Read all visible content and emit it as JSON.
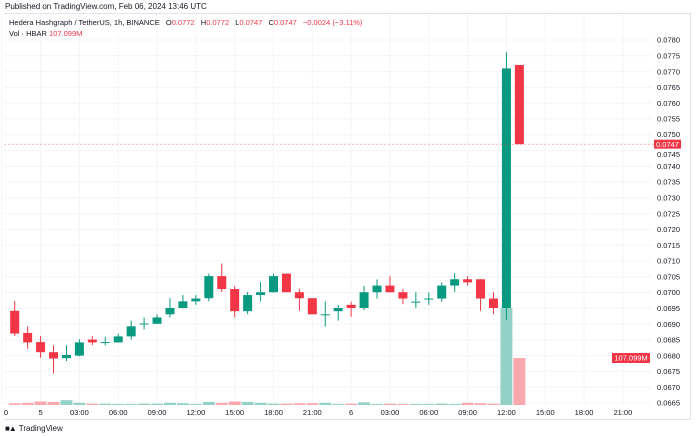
{
  "published": "Published on TradingView.com, Feb 06, 2024 13:46 UTC",
  "legend": {
    "symbol": "Hedera Hashgraph / TetherUS, 1h, BINANCE",
    "o_label": "O",
    "o": "0.0772",
    "h_label": "H",
    "h": "0.0772",
    "l_label": "L",
    "l": "0.0747",
    "c_label": "C",
    "c": "0.0747",
    "change": "−0.0024 (−3.11%)",
    "vol_label": "Vol · HBAR",
    "vol": "107.099M"
  },
  "footer": {
    "brand": "TradingView",
    "logo_text": "TV"
  },
  "colors": {
    "up": "#089981",
    "down": "#f23645",
    "up_vol": "#92d2c6",
    "down_vol": "#f9a9ae",
    "grid": "#f3f4f6",
    "axis_text": "#131722"
  },
  "chart_data": {
    "type": "candlestick",
    "interval": "1h",
    "ylim": [
      0.0665,
      0.078
    ],
    "y_ticks": [
      "0.0780",
      "0.0775",
      "0.0770",
      "0.0765",
      "0.0760",
      "0.0755",
      "0.0750",
      "0.0745",
      "0.0740",
      "0.0735",
      "0.0730",
      "0.0725",
      "0.0720",
      "0.0715",
      "0.0710",
      "0.0705",
      "0.0700",
      "0.0695",
      "0.0690",
      "0.0685",
      "0.0680",
      "0.0675",
      "0.0670",
      "0.0665"
    ],
    "x_ticks": [
      {
        "label": "0",
        "index": -1
      },
      {
        "label": "5",
        "index": 2
      },
      {
        "label": "03:00",
        "index": 5
      },
      {
        "label": "06:00",
        "index": 8
      },
      {
        "label": "09:00",
        "index": 11
      },
      {
        "label": "12:00",
        "index": 14
      },
      {
        "label": "15:00",
        "index": 17
      },
      {
        "label": "18:00",
        "index": 20
      },
      {
        "label": "21:00",
        "index": 23
      },
      {
        "label": "6",
        "index": 26
      },
      {
        "label": "03:00",
        "index": 29
      },
      {
        "label": "06:00",
        "index": 32
      },
      {
        "label": "09:00",
        "index": 35
      },
      {
        "label": "12:00",
        "index": 38
      },
      {
        "label": "15:00",
        "index": 41
      },
      {
        "label": "18:00",
        "index": 44
      },
      {
        "label": "21:00",
        "index": 47
      }
    ],
    "last_price": "0.0747",
    "last_volume": "107.099M",
    "candles": [
      {
        "o": 0.06942,
        "h": 0.06973,
        "l": 0.06862,
        "c": 0.0687,
        "v": 4
      },
      {
        "o": 0.06872,
        "h": 0.06893,
        "l": 0.06822,
        "c": 0.06842,
        "v": 5
      },
      {
        "o": 0.06843,
        "h": 0.06862,
        "l": 0.06793,
        "c": 0.06811,
        "v": 8
      },
      {
        "o": 0.06811,
        "h": 0.06833,
        "l": 0.06744,
        "c": 0.06791,
        "v": 7
      },
      {
        "o": 0.06792,
        "h": 0.06833,
        "l": 0.06783,
        "c": 0.06802,
        "v": 11
      },
      {
        "o": 0.068,
        "h": 0.06852,
        "l": 0.06798,
        "c": 0.06842,
        "v": 5
      },
      {
        "o": 0.06851,
        "h": 0.06862,
        "l": 0.06833,
        "c": 0.06842,
        "v": 3
      },
      {
        "o": 0.06843,
        "h": 0.0686,
        "l": 0.06833,
        "c": 0.06843,
        "v": 3
      },
      {
        "o": 0.06842,
        "h": 0.0687,
        "l": 0.06842,
        "c": 0.06861,
        "v": 2
      },
      {
        "o": 0.06861,
        "h": 0.06911,
        "l": 0.06851,
        "c": 0.06893,
        "v": 2
      },
      {
        "o": 0.06902,
        "h": 0.06921,
        "l": 0.06883,
        "c": 0.06902,
        "v": 3
      },
      {
        "o": 0.06901,
        "h": 0.06931,
        "l": 0.06901,
        "c": 0.06921,
        "v": 3
      },
      {
        "o": 0.06931,
        "h": 0.06982,
        "l": 0.06921,
        "c": 0.06951,
        "v": 5
      },
      {
        "o": 0.06951,
        "h": 0.06992,
        "l": 0.0695,
        "c": 0.06972,
        "v": 4
      },
      {
        "o": 0.06972,
        "h": 0.06992,
        "l": 0.06961,
        "c": 0.06981,
        "v": 2
      },
      {
        "o": 0.06982,
        "h": 0.0706,
        "l": 0.06972,
        "c": 0.07052,
        "v": 7
      },
      {
        "o": 0.07052,
        "h": 0.07092,
        "l": 0.07002,
        "c": 0.07011,
        "v": 5
      },
      {
        "o": 0.07011,
        "h": 0.0702,
        "l": 0.06921,
        "c": 0.06941,
        "v": 8
      },
      {
        "o": 0.06941,
        "h": 0.07002,
        "l": 0.06931,
        "c": 0.06992,
        "v": 7
      },
      {
        "o": 0.06992,
        "h": 0.07033,
        "l": 0.06972,
        "c": 0.07001,
        "v": 5
      },
      {
        "o": 0.07001,
        "h": 0.0706,
        "l": 0.07,
        "c": 0.07052,
        "v": 3
      },
      {
        "o": 0.0706,
        "h": 0.0706,
        "l": 0.07001,
        "c": 0.07001,
        "v": 3
      },
      {
        "o": 0.07001,
        "h": 0.07012,
        "l": 0.06942,
        "c": 0.06982,
        "v": 4
      },
      {
        "o": 0.06982,
        "h": 0.06982,
        "l": 0.06931,
        "c": 0.06931,
        "v": 4
      },
      {
        "o": 0.06931,
        "h": 0.06972,
        "l": 0.06892,
        "c": 0.06931,
        "v": 5
      },
      {
        "o": 0.06941,
        "h": 0.06961,
        "l": 0.06911,
        "c": 0.06951,
        "v": 2
      },
      {
        "o": 0.06961,
        "h": 0.06971,
        "l": 0.06923,
        "c": 0.06951,
        "v": 3
      },
      {
        "o": 0.06951,
        "h": 0.07021,
        "l": 0.06944,
        "c": 0.07001,
        "v": 6
      },
      {
        "o": 0.07001,
        "h": 0.07042,
        "l": 0.06981,
        "c": 0.07022,
        "v": 2
      },
      {
        "o": 0.07022,
        "h": 0.07052,
        "l": 0.07,
        "c": 0.07001,
        "v": 3
      },
      {
        "o": 0.07001,
        "h": 0.07011,
        "l": 0.06963,
        "c": 0.06981,
        "v": 2
      },
      {
        "o": 0.06971,
        "h": 0.07001,
        "l": 0.06951,
        "c": 0.06971,
        "v": 2
      },
      {
        "o": 0.06981,
        "h": 0.07,
        "l": 0.06961,
        "c": 0.06981,
        "v": 2
      },
      {
        "o": 0.06981,
        "h": 0.07032,
        "l": 0.06971,
        "c": 0.07022,
        "v": 3
      },
      {
        "o": 0.07022,
        "h": 0.07062,
        "l": 0.07002,
        "c": 0.07042,
        "v": 2
      },
      {
        "o": 0.07042,
        "h": 0.07052,
        "l": 0.07022,
        "c": 0.07032,
        "v": 5
      },
      {
        "o": 0.07042,
        "h": 0.07042,
        "l": 0.06942,
        "c": 0.06981,
        "v": 4
      },
      {
        "o": 0.06981,
        "h": 0.07001,
        "l": 0.06931,
        "c": 0.06951,
        "v": 3
      },
      {
        "o": 0.06951,
        "h": 0.07761,
        "l": 0.06912,
        "c": 0.0771,
        "v": 221
      },
      {
        "o": 0.07721,
        "h": 0.07721,
        "l": 0.0747,
        "c": 0.0747,
        "v": 107.099
      }
    ]
  }
}
